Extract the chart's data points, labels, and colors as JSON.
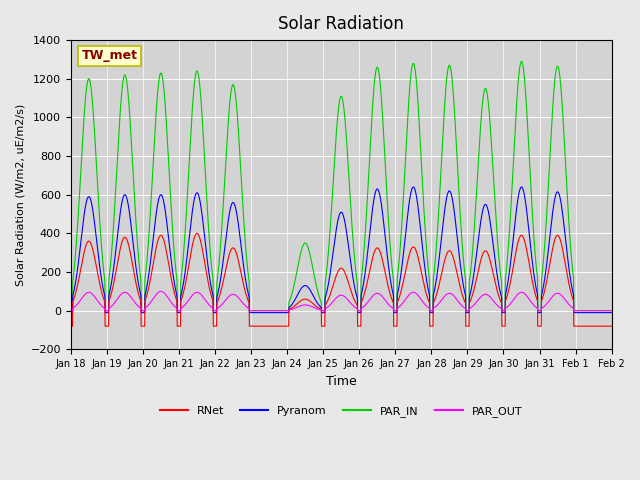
{
  "title": "Solar Radiation",
  "ylabel": "Solar Radiation (W/m2, uE/m2/s)",
  "xlabel": "Time",
  "ylim": [
    -200,
    1400
  ],
  "yticks": [
    -200,
    0,
    200,
    400,
    600,
    800,
    1000,
    1200,
    1400
  ],
  "background_color": "#e8e8e8",
  "plot_bg_color": "#d3d3d3",
  "colors": {
    "RNet": "#ff0000",
    "Pyranom": "#0000ff",
    "PAR_IN": "#00cc00",
    "PAR_OUT": "#ff00ff"
  },
  "station_label": "TW_met",
  "station_label_color": "#8b0000",
  "station_label_bg": "#ffffcc",
  "xtick_labels": [
    "Jan 18",
    "Jan 19",
    "Jan 20",
    "Jan 21",
    "Jan 22",
    "Jan 23",
    "Jan 24",
    "Jan 25",
    "Jan 26",
    "Jan 27",
    "Jan 28",
    "Jan 29",
    "Jan 30",
    "Jan 31",
    "Feb 1",
    "Feb 2"
  ],
  "num_days": 15,
  "num_ticks": 16,
  "par_in_peaks": [
    1200,
    1220,
    1230,
    1240,
    1170,
    0,
    350,
    1110,
    1260,
    1280,
    1270,
    1150,
    1290,
    1265,
    0
  ],
  "pyranom_peaks": [
    590,
    600,
    600,
    610,
    560,
    0,
    130,
    510,
    630,
    640,
    620,
    550,
    640,
    615,
    0
  ],
  "rnet_peaks": [
    360,
    380,
    390,
    400,
    325,
    0,
    60,
    220,
    325,
    330,
    310,
    310,
    390,
    390,
    0
  ],
  "par_out_peaks": [
    95,
    95,
    100,
    95,
    85,
    0,
    30,
    80,
    90,
    95,
    90,
    85,
    95,
    90,
    0
  ],
  "rnet_night": -80,
  "pyranom_night": -10,
  "legend_items": [
    "RNet",
    "Pyranom",
    "PAR_IN",
    "PAR_OUT"
  ]
}
